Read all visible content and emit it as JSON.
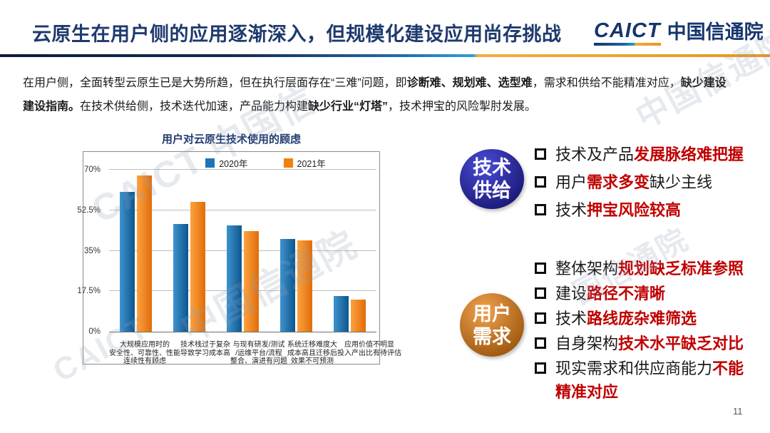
{
  "header": {
    "title": "云原生在用户侧的应用逐渐深入，但规模化建设应用尚存挑战",
    "logo_brand": "CAICT",
    "logo_name": "中国信通院"
  },
  "intro": {
    "segments": [
      {
        "t": "在用户侧，全面转型云原生已是大势所趋，但在执行层面存在“三难”问题，即",
        "b": false
      },
      {
        "t": "诊断难、规划难、选型难",
        "b": true
      },
      {
        "t": "，需求和供给不能精准对应，",
        "b": false
      },
      {
        "t": "缺少建设",
        "b": true
      },
      {
        "br": true
      },
      {
        "t": "建设指南。",
        "b": true
      },
      {
        "t": "在技术供给侧，技术迭代加速，产品能力构建",
        "b": false
      },
      {
        "t": "缺少行业“灯塔”",
        "b": true
      },
      {
        "t": "，技术押宝的风险掣肘发展。",
        "b": false
      }
    ]
  },
  "chart_data": {
    "type": "bar",
    "title": "用户对云原生技术使用的顾虑",
    "categories": [
      [
        "大规模应用时的",
        "安全性、可靠性、性能",
        "连续性有顾虑"
      ],
      [
        "技术栈过于复杂",
        "导致学习成本高"
      ],
      [
        "与现有研发/测试",
        "/运维平台/流程",
        "整合、演进有问题"
      ],
      [
        "系统迁移难度大",
        "成本高且迁移后",
        "效果不可预测"
      ],
      [
        "应用价值不明显",
        "投入产出比有待评估"
      ]
    ],
    "series": [
      {
        "name": "2020年",
        "legend_color": "#1c75b8",
        "gradient": [
          "#3e93ce",
          "#0d568f"
        ],
        "values": [
          60.5,
          46.5,
          46,
          40,
          15.5
        ]
      },
      {
        "name": "2021年",
        "legend_color": "#ee820f",
        "gradient": [
          "#fca33e",
          "#e06c0a"
        ],
        "values": [
          67.5,
          56,
          43.5,
          39.5,
          14
        ]
      }
    ],
    "ylabel": "",
    "xlabel": "",
    "ylim": [
      0,
      70
    ],
    "yticks": [
      {
        "label": "70%",
        "value": 70
      },
      {
        "label": "52.5%",
        "value": 52.5
      },
      {
        "label": "35%",
        "value": 35
      },
      {
        "label": "17.5%",
        "value": 17.5
      },
      {
        "label": "0%",
        "value": 0
      }
    ],
    "grid": true,
    "legend_position": "top"
  },
  "right": {
    "tech_supply": {
      "badge_lines": [
        "技术",
        "供给"
      ],
      "badge_colors": [
        "#4a4cd6",
        "#1b1a78"
      ],
      "items": [
        [
          {
            "t": "技术及产品"
          },
          {
            "t": "发展脉络难把握",
            "red": true
          }
        ],
        [
          {
            "t": "用户"
          },
          {
            "t": "需求多变",
            "red": true
          },
          {
            "t": "缺少主线"
          }
        ],
        [
          {
            "t": "技术"
          },
          {
            "t": "押宝风险较高",
            "red": true
          }
        ]
      ]
    },
    "user_demand": {
      "badge_lines": [
        "用户",
        "需求"
      ],
      "badge_colors": [
        "#f2a14d",
        "#9e5a10"
      ],
      "items": [
        [
          {
            "t": "整体架构"
          },
          {
            "t": "规划缺乏标准参照",
            "red": true
          }
        ],
        [
          {
            "t": "建设"
          },
          {
            "t": "路径不清晰",
            "red": true
          }
        ],
        [
          {
            "t": "技术"
          },
          {
            "t": "路线庞杂难筛选",
            "red": true
          }
        ],
        [
          {
            "t": "自身架构"
          },
          {
            "t": "技术水平缺乏对比",
            "red": true
          }
        ],
        [
          {
            "t": "现实需求和供应商能力"
          },
          {
            "t": "不能",
            "red": true
          },
          {
            "br": true
          },
          {
            "t": "精准对应",
            "red": true
          }
        ]
      ]
    }
  },
  "watermarks": [
    "中国信通院",
    "CAICT 中国信",
    "中国信通院",
    "国信通院",
    "CAICT"
  ],
  "footer": {
    "page": "11"
  },
  "colors": {
    "title_navy": "#1f3a6e",
    "highlight_red": "#c00000",
    "divider_blue": "#14294f",
    "divider_orange": "#e8941f"
  }
}
